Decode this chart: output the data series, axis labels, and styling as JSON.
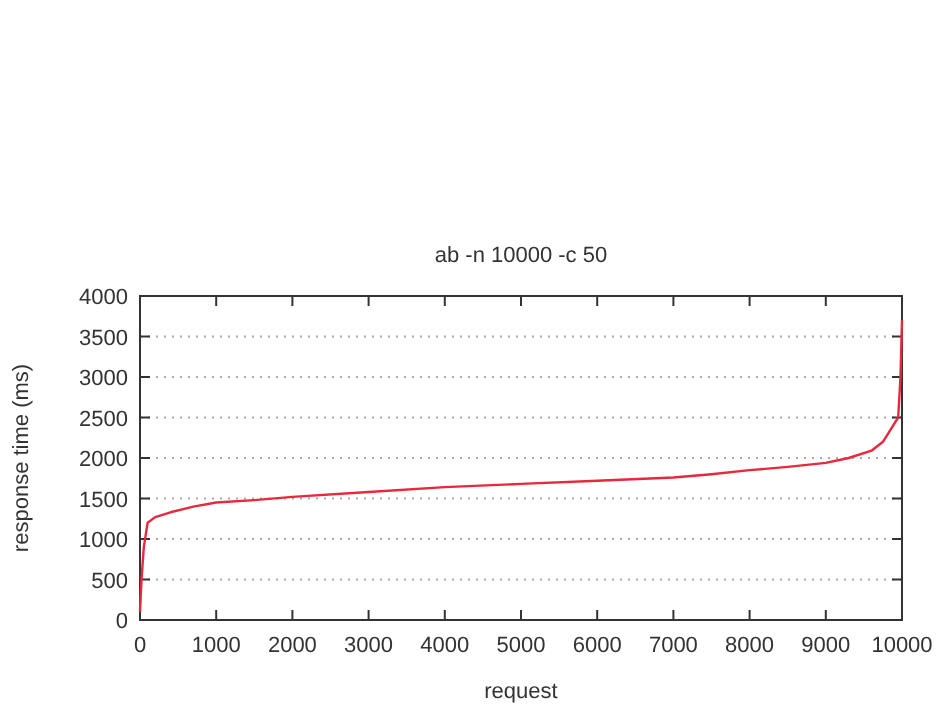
{
  "chart_data": {
    "type": "line",
    "title": "ab -n 10000 -c 50",
    "xlabel": "request",
    "ylabel": "response time (ms)",
    "x": [
      0,
      20,
      50,
      100,
      200,
      400,
      700,
      1000,
      1500,
      2000,
      3000,
      4000,
      5000,
      6000,
      7000,
      7500,
      8000,
      8500,
      9000,
      9300,
      9600,
      9750,
      9850,
      9950,
      9980,
      10000
    ],
    "series": [
      {
        "color": "#e8283c",
        "values": [
          100,
          500,
          900,
          1200,
          1270,
          1330,
          1400,
          1450,
          1480,
          1520,
          1580,
          1640,
          1680,
          1720,
          1760,
          1800,
          1850,
          1890,
          1940,
          2000,
          2090,
          2200,
          2350,
          2500,
          3000,
          3700
        ]
      }
    ],
    "xlim": [
      0,
      10000
    ],
    "xticks": [
      0,
      1000,
      2000,
      3000,
      4000,
      5000,
      6000,
      7000,
      8000,
      9000,
      10000
    ],
    "ylim": [
      0,
      4000
    ],
    "yticks": [
      0,
      500,
      1000,
      1500,
      2000,
      2500,
      3000,
      3500,
      4000
    ],
    "grid": "y",
    "marker": "none",
    "line_style": "solid"
  }
}
